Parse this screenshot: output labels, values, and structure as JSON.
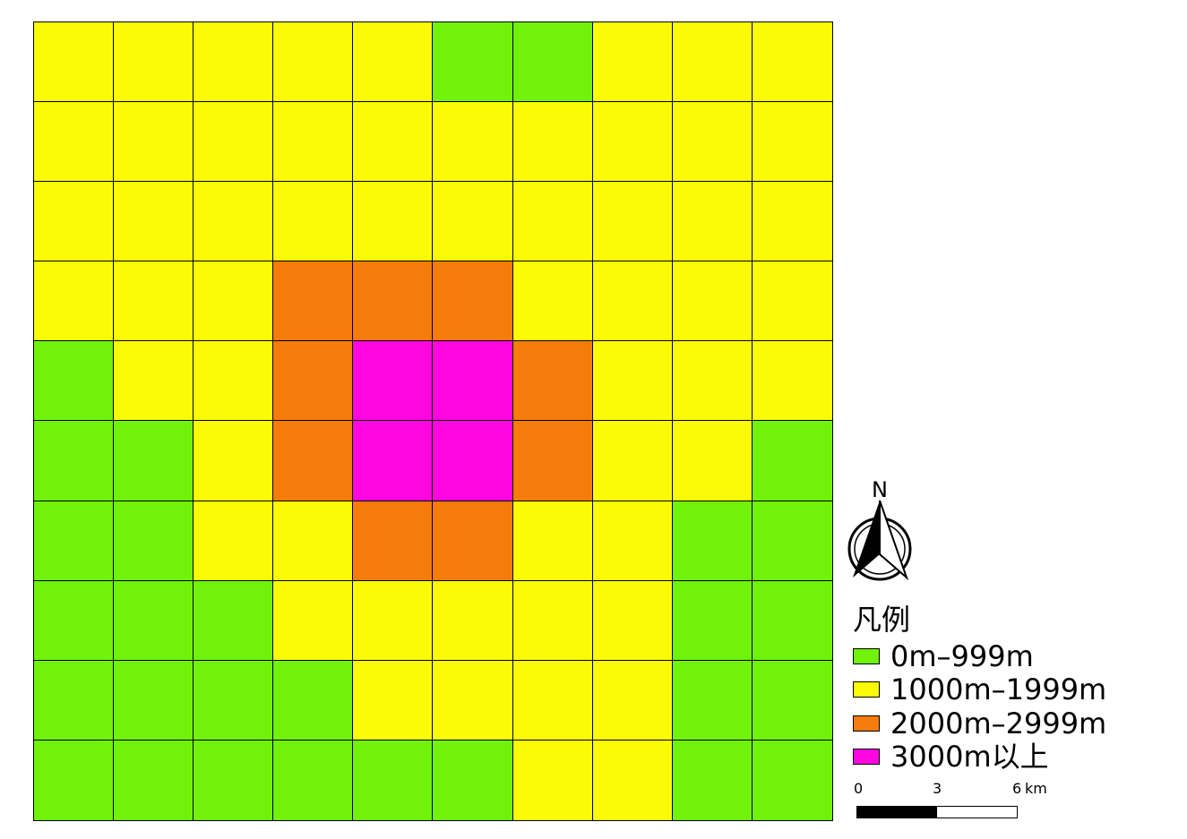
{
  "colors": {
    "0": "#71f20a",
    "1": "#fbfb08",
    "2": "#f57c0b",
    "3": "#ff06e0"
  },
  "grid": [
    [
      1,
      1,
      1,
      1,
      1,
      0,
      0,
      1,
      1,
      1
    ],
    [
      1,
      1,
      1,
      1,
      1,
      1,
      1,
      1,
      1,
      1
    ],
    [
      1,
      1,
      1,
      1,
      1,
      1,
      1,
      1,
      1,
      1
    ],
    [
      1,
      1,
      1,
      2,
      2,
      2,
      1,
      1,
      1,
      1
    ],
    [
      0,
      1,
      1,
      2,
      3,
      3,
      2,
      1,
      1,
      1
    ],
    [
      0,
      0,
      1,
      2,
      3,
      3,
      2,
      1,
      1,
      0
    ],
    [
      0,
      0,
      1,
      1,
      2,
      2,
      1,
      1,
      0,
      0
    ],
    [
      0,
      0,
      0,
      1,
      1,
      1,
      1,
      1,
      0,
      0
    ],
    [
      0,
      0,
      0,
      0,
      1,
      1,
      1,
      1,
      0,
      0
    ],
    [
      0,
      0,
      0,
      0,
      0,
      0,
      1,
      1,
      0,
      0
    ]
  ],
  "north_arrow": {
    "label": "N",
    "icon": "north-arrow-icon"
  },
  "legend": {
    "title": "凡例",
    "items": [
      {
        "label": "0m–999m",
        "class": 0
      },
      {
        "label": "1000m–1999m",
        "class": 1
      },
      {
        "label": "2000m–2999m",
        "class": 2
      },
      {
        "label": "3000m以上",
        "class": 3
      }
    ]
  },
  "scale_bar": {
    "tick_0": "0",
    "tick_1": "3",
    "tick_2": "6",
    "unit": "km"
  }
}
